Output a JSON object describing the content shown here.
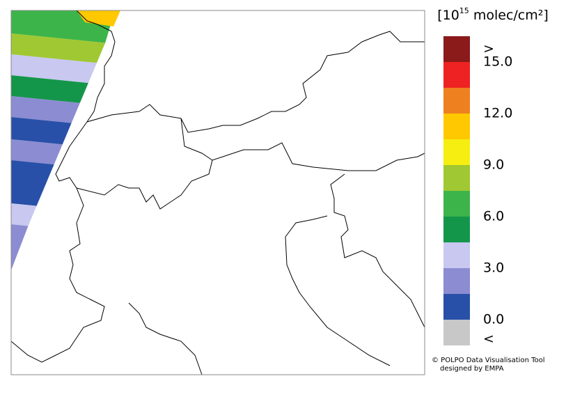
{
  "legend": {
    "unit": {
      "prefix": "[10",
      "exponent": "15",
      "suffix": " molec/cm²]"
    },
    "colors": [
      "#8b1a1a",
      "#ee2222",
      "#ee8020",
      "#ffc800",
      "#f5ee10",
      "#a0c832",
      "#3cb44a",
      "#14964a",
      "#c8c8f0",
      "#8c8cd2",
      "#2850a8",
      "#c8c8c8"
    ],
    "labels": [
      ">",
      "15.0",
      "12.0",
      "9.0",
      "6.0",
      "3.0",
      "0.0",
      "<"
    ]
  },
  "credits": {
    "line1": "© POLPO Data Visualisation Tool",
    "line2": "designed by EMPA"
  }
}
